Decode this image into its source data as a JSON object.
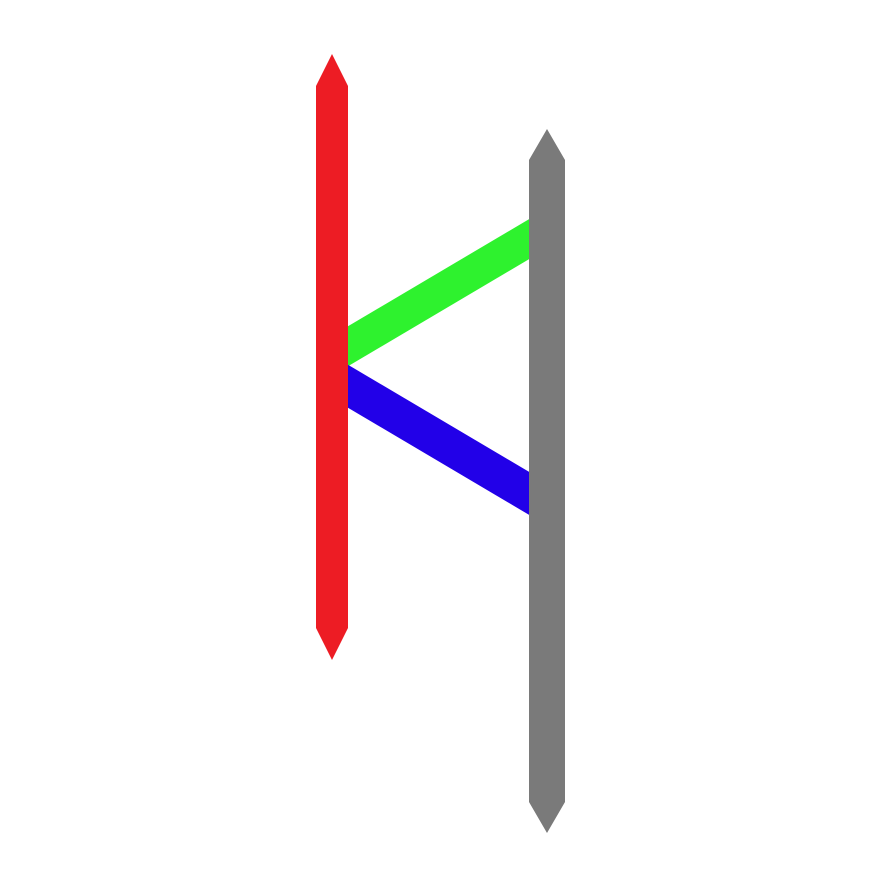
{
  "background_color": "#ffffff",
  "shapes": {
    "red_bar": {
      "color": "#ed1c24",
      "icon": "double-pointed-bar-icon"
    },
    "gray_bar": {
      "color": "#7a7a7a",
      "icon": "double-pointed-bar-icon"
    },
    "green_link": {
      "color": "#2ef22e"
    },
    "blue_link": {
      "color": "#2200e8"
    }
  }
}
